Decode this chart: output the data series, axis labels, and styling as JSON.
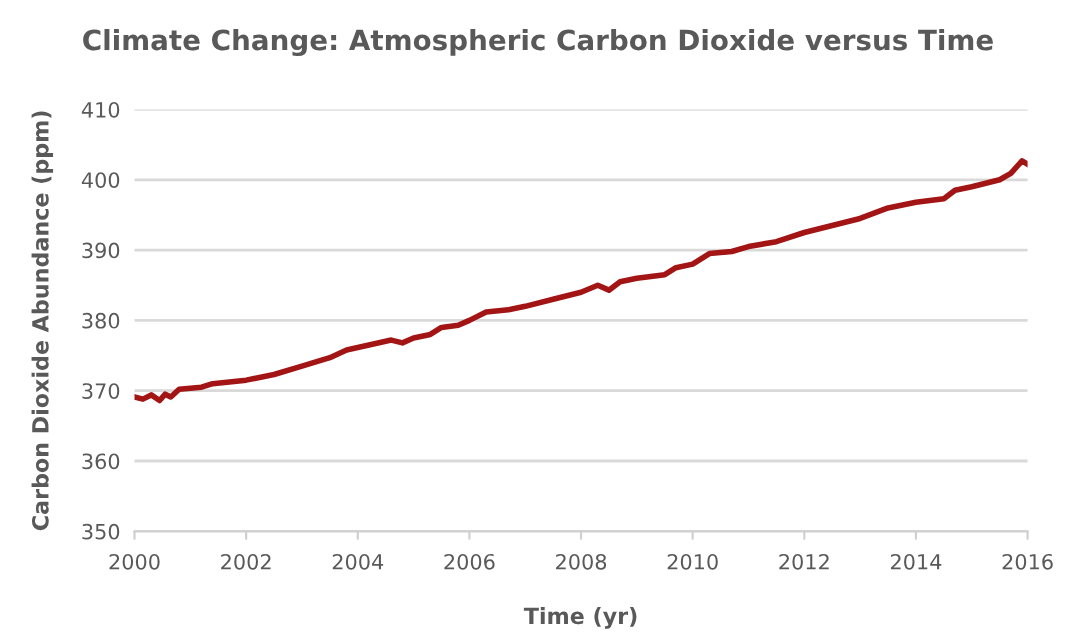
{
  "chart_data": {
    "type": "line",
    "title": "Climate Change: Atmospheric Carbon Dioxide versus Time",
    "xlabel": "Time (yr)",
    "ylabel": "Carbon Dioxide Abundance (ppm)",
    "xlim": [
      2000,
      2016
    ],
    "xticks": [
      2000,
      2002,
      2004,
      2006,
      2008,
      2010,
      2012,
      2014,
      2016
    ],
    "ylim": [
      350,
      410
    ],
    "yticks": [
      350,
      360,
      370,
      380,
      390,
      400,
      410
    ],
    "grid": "y",
    "marker": "none",
    "line_style": "solid",
    "x": [
      2000.0,
      2000.15,
      2000.3,
      2000.45,
      2000.55,
      2000.65,
      2000.8,
      2001.2,
      2001.4,
      2002.0,
      2002.5,
      2003.0,
      2003.5,
      2003.8,
      2004.2,
      2004.6,
      2004.8,
      2005.0,
      2005.3,
      2005.5,
      2005.8,
      2006.0,
      2006.3,
      2006.7,
      2007.0,
      2007.5,
      2008.0,
      2008.3,
      2008.5,
      2008.7,
      2009.0,
      2009.5,
      2009.7,
      2010.0,
      2010.3,
      2010.7,
      2011.0,
      2011.5,
      2012.0,
      2012.5,
      2013.0,
      2013.5,
      2014.0,
      2014.5,
      2014.7,
      2015.0,
      2015.5,
      2015.7,
      2015.9,
      2016.0
    ],
    "series": [
      {
        "color": "#a31515",
        "values": [
          369.1,
          368.8,
          369.4,
          368.6,
          369.5,
          369.1,
          370.2,
          370.5,
          371.0,
          371.5,
          372.3,
          373.5,
          374.7,
          375.8,
          376.5,
          377.2,
          376.8,
          377.5,
          378.0,
          379.0,
          379.3,
          380.0,
          381.2,
          381.5,
          382.0,
          383.0,
          384.0,
          385.0,
          384.3,
          385.5,
          386.0,
          386.5,
          387.5,
          388.0,
          389.5,
          389.8,
          390.5,
          391.2,
          392.5,
          393.5,
          394.5,
          396.0,
          396.8,
          397.3,
          398.5,
          399.0,
          400.0,
          400.9,
          402.7,
          402.2
        ]
      }
    ]
  }
}
